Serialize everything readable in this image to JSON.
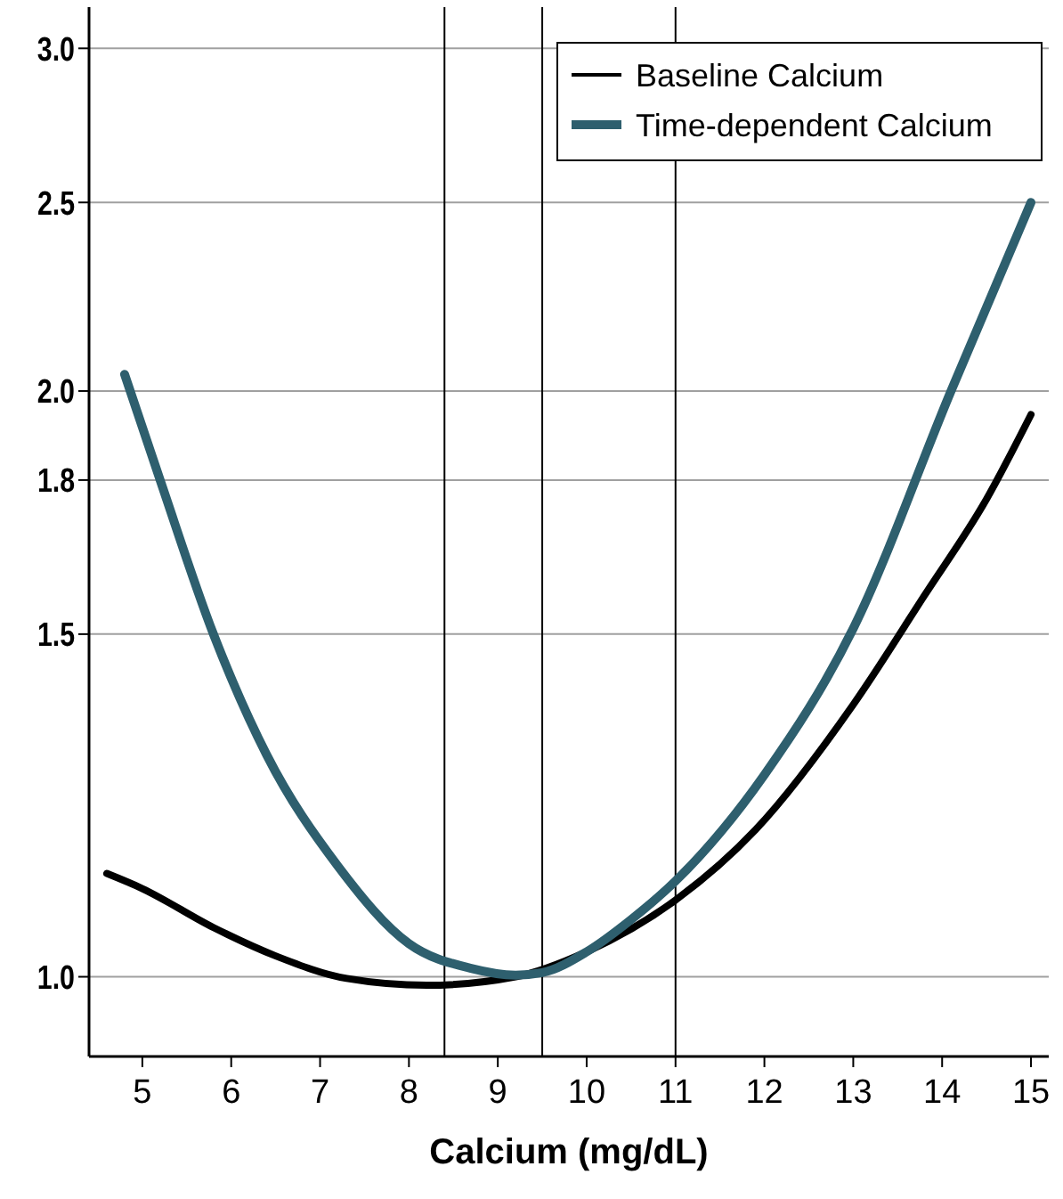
{
  "chart_data": {
    "type": "line",
    "xlabel": "Calcium (mg/dL)",
    "log": "y",
    "xlim": [
      4.4,
      15.2
    ],
    "xticks": [
      5,
      6,
      7,
      8,
      9,
      10,
      11,
      12,
      13,
      14,
      15
    ],
    "ylim": [
      0.91,
      3.15
    ],
    "yticks": [
      {
        "value": 1,
        "label": "1.0"
      },
      1.5,
      1.8,
      {
        "value": 2,
        "label": "2.0"
      },
      2.5,
      {
        "value": 3,
        "label": "3.0"
      }
    ],
    "grid": "y",
    "legend": "top right",
    "line_style": "solid",
    "marker": "none",
    "ref_lines": [
      {
        "axis": "x",
        "value": 8.4,
        "color": "#000000"
      },
      {
        "axis": "x",
        "value": 9.5,
        "color": "#000000"
      },
      {
        "axis": "x",
        "value": 11,
        "color": "#000000"
      }
    ],
    "series": [
      {
        "name": "Baseline Calcium",
        "color": "#000000",
        "x": [
          4.6,
          5,
          5.8,
          6.5,
          7.3,
          8.2,
          9.2,
          10,
          11,
          11.9,
          13,
          13.8,
          14.5,
          15
        ],
        "values": [
          1.13,
          1.11,
          1.06,
          1.025,
          0.998,
          0.99,
          1.0,
          1.03,
          1.095,
          1.19,
          1.38,
          1.57,
          1.76,
          1.945
        ]
      },
      {
        "name": "Time-dependent Calcium",
        "color": "#2e5f6e",
        "x": [
          4.8,
          5.2,
          5.8,
          6.4,
          7.2,
          8,
          8.7,
          9.2,
          9.5,
          10,
          10.5,
          11,
          12,
          13,
          14.1,
          15
        ],
        "values": [
          2.04,
          1.8,
          1.5,
          1.3,
          1.14,
          1.04,
          1.01,
          1.002,
          1.005,
          1.03,
          1.07,
          1.12,
          1.27,
          1.51,
          2.0,
          2.5
        ]
      }
    ]
  }
}
